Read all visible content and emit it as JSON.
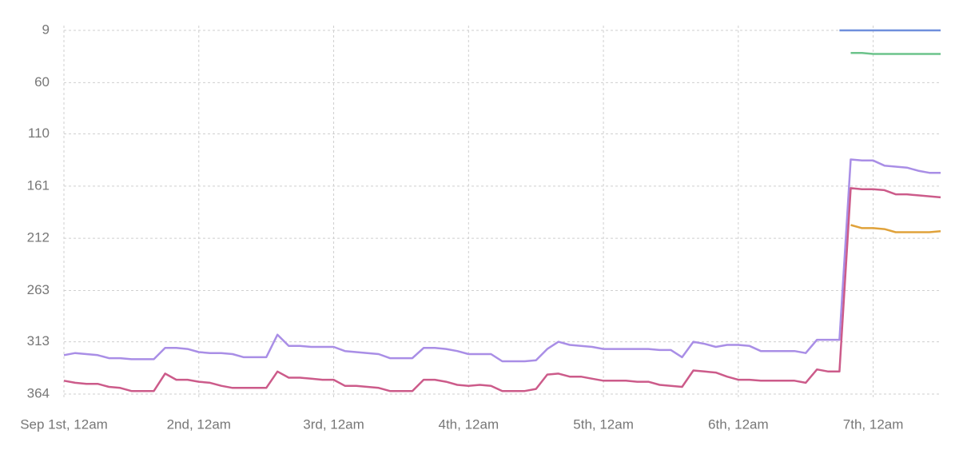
{
  "chart_data": {
    "type": "line",
    "x": [
      0,
      2,
      4,
      6,
      8,
      10,
      12,
      14,
      16,
      18,
      20,
      22,
      24,
      26,
      28,
      30,
      32,
      34,
      36,
      38,
      40,
      42,
      44,
      46,
      48,
      50,
      52,
      54,
      56,
      58,
      60,
      62,
      64,
      66,
      68,
      70,
      72,
      74,
      76,
      78,
      80,
      82,
      84,
      86,
      88,
      90,
      92,
      94,
      96,
      98,
      100,
      102,
      104,
      106,
      108,
      110,
      112,
      114,
      116,
      118,
      120,
      122,
      124,
      126,
      128,
      130,
      132,
      134,
      136,
      138,
      140,
      142,
      144,
      146,
      148,
      150,
      152,
      154,
      156
    ],
    "xlim": [
      0,
      156
    ],
    "xticks": [
      {
        "value": 0,
        "label": "Sep 1st, 12am"
      },
      {
        "value": 24,
        "label": "2nd, 12am"
      },
      {
        "value": 48,
        "label": "3rd, 12am"
      },
      {
        "value": 72,
        "label": "4th, 12am"
      },
      {
        "value": 96,
        "label": "5th, 12am"
      },
      {
        "value": 120,
        "label": "6th, 12am"
      },
      {
        "value": 144,
        "label": "7th, 12am"
      }
    ],
    "ylim": [
      364,
      9
    ],
    "yticks": [
      9,
      60,
      110,
      161,
      212,
      263,
      313,
      364
    ],
    "grid": true,
    "series": [
      {
        "color": "#6f8fdc",
        "values": [
          null,
          null,
          null,
          null,
          null,
          null,
          null,
          null,
          null,
          null,
          null,
          null,
          null,
          null,
          null,
          null,
          null,
          null,
          null,
          null,
          null,
          null,
          null,
          null,
          null,
          null,
          null,
          null,
          null,
          null,
          null,
          null,
          null,
          null,
          null,
          null,
          null,
          null,
          null,
          null,
          null,
          null,
          null,
          null,
          null,
          null,
          null,
          null,
          null,
          null,
          null,
          null,
          null,
          null,
          null,
          null,
          null,
          null,
          null,
          null,
          null,
          null,
          null,
          null,
          null,
          null,
          null,
          null,
          null,
          9,
          9,
          9,
          9,
          9,
          9,
          9,
          9,
          9,
          9
        ]
      },
      {
        "color": "#6cc38b",
        "values": [
          null,
          null,
          null,
          null,
          null,
          null,
          null,
          null,
          null,
          null,
          null,
          null,
          null,
          null,
          null,
          null,
          null,
          null,
          null,
          null,
          null,
          null,
          null,
          null,
          null,
          null,
          null,
          null,
          null,
          null,
          null,
          null,
          null,
          null,
          null,
          null,
          null,
          null,
          null,
          null,
          null,
          null,
          null,
          null,
          null,
          null,
          null,
          null,
          null,
          null,
          null,
          null,
          null,
          null,
          null,
          null,
          null,
          null,
          null,
          null,
          null,
          null,
          null,
          null,
          null,
          null,
          null,
          null,
          null,
          null,
          31,
          31,
          32,
          32,
          32,
          32,
          32,
          32,
          32
        ]
      },
      {
        "color": "#a98ee6",
        "values": [
          326,
          324,
          325,
          326,
          329,
          329,
          330,
          330,
          330,
          319,
          319,
          320,
          323,
          324,
          324,
          325,
          328,
          328,
          328,
          306,
          317,
          317,
          318,
          318,
          318,
          322,
          323,
          324,
          325,
          329,
          329,
          329,
          319,
          319,
          320,
          322,
          325,
          325,
          325,
          332,
          332,
          332,
          331,
          320,
          313,
          316,
          317,
          318,
          320,
          320,
          320,
          320,
          320,
          321,
          321,
          328,
          313,
          315,
          318,
          316,
          316,
          317,
          322,
          322,
          322,
          322,
          324,
          311,
          311,
          311,
          135,
          136,
          136,
          141,
          142,
          143,
          146,
          148,
          148
        ]
      },
      {
        "color": "#cc5b8a",
        "values": [
          351,
          353,
          354,
          354,
          357,
          358,
          361,
          361,
          361,
          344,
          350,
          350,
          352,
          353,
          356,
          358,
          358,
          358,
          358,
          342,
          348,
          348,
          349,
          350,
          350,
          356,
          356,
          357,
          358,
          361,
          361,
          361,
          350,
          350,
          352,
          355,
          356,
          355,
          356,
          361,
          361,
          361,
          359,
          345,
          344,
          347,
          347,
          349,
          351,
          351,
          351,
          352,
          352,
          355,
          356,
          357,
          341,
          342,
          343,
          347,
          350,
          350,
          351,
          351,
          351,
          351,
          353,
          340,
          342,
          342,
          163,
          164,
          164,
          165,
          169,
          169,
          170,
          171,
          172
        ]
      },
      {
        "color": "#e0a23a",
        "values": [
          null,
          null,
          null,
          null,
          null,
          null,
          null,
          null,
          null,
          null,
          null,
          null,
          null,
          null,
          null,
          null,
          null,
          null,
          null,
          null,
          null,
          null,
          null,
          null,
          null,
          null,
          null,
          null,
          null,
          null,
          null,
          null,
          null,
          null,
          null,
          null,
          null,
          null,
          null,
          null,
          null,
          null,
          null,
          null,
          null,
          null,
          null,
          null,
          null,
          null,
          null,
          null,
          null,
          null,
          null,
          null,
          null,
          null,
          null,
          null,
          null,
          null,
          null,
          null,
          null,
          null,
          null,
          null,
          null,
          null,
          199,
          202,
          202,
          203,
          206,
          206,
          206,
          206,
          205
        ]
      }
    ]
  }
}
